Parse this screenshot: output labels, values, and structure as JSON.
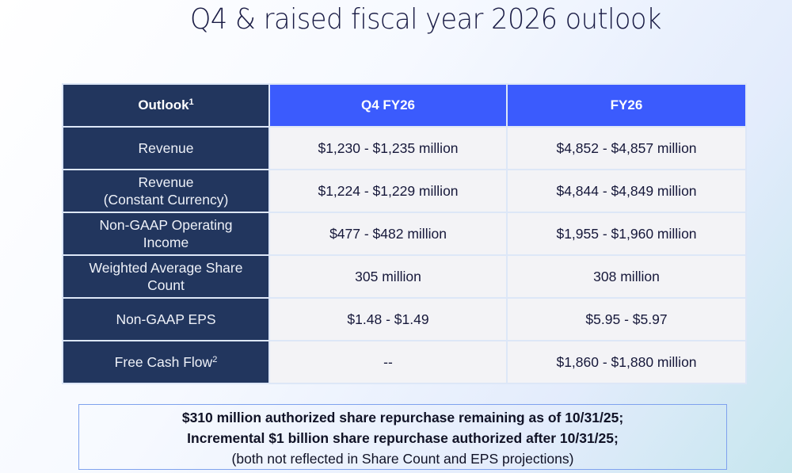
{
  "title": "Q4 & raised fiscal year 2026 outlook",
  "table": {
    "headers": [
      {
        "label": "Outlook",
        "sup": "1"
      },
      {
        "label": "Q4 FY26",
        "sup": ""
      },
      {
        "label": "FY26",
        "sup": ""
      }
    ],
    "rows": [
      {
        "label": "Revenue",
        "sup": "",
        "q4": "$1,230 - $1,235 million",
        "fy": "$4,852 - $4,857 million"
      },
      {
        "label": "Revenue\n(Constant Currency)",
        "sup": "",
        "q4": "$1,224 - $1,229 million",
        "fy": "$4,844 - $4,849 million"
      },
      {
        "label": "Non-GAAP Operating\nIncome",
        "sup": "",
        "q4": "$477 - $482 million",
        "fy": "$1,955 - $1,960 million"
      },
      {
        "label": "Weighted Average Share\nCount",
        "sup": "",
        "q4": "305 million",
        "fy": "308 million"
      },
      {
        "label": "Non-GAAP EPS",
        "sup": "",
        "q4": "$1.48 - $1.49",
        "fy": "$5.95 - $5.97"
      },
      {
        "label": "Free Cash Flow",
        "sup": "2",
        "q4": "--",
        "fy": "$1,860 - $1,880 million"
      }
    ]
  },
  "note": {
    "line1": "$310 million authorized share repurchase remaining as of 10/31/25;",
    "line2": "Incremental $1 billion share repurchase authorized after 10/31/25;",
    "line3": "(both not reflected in Share Count and EPS projections)"
  },
  "colors": {
    "label_column": "#22365e",
    "header_accent": "#3b5bfd",
    "cell_background": "#f3f3f6",
    "note_border": "#7fa2ee"
  }
}
